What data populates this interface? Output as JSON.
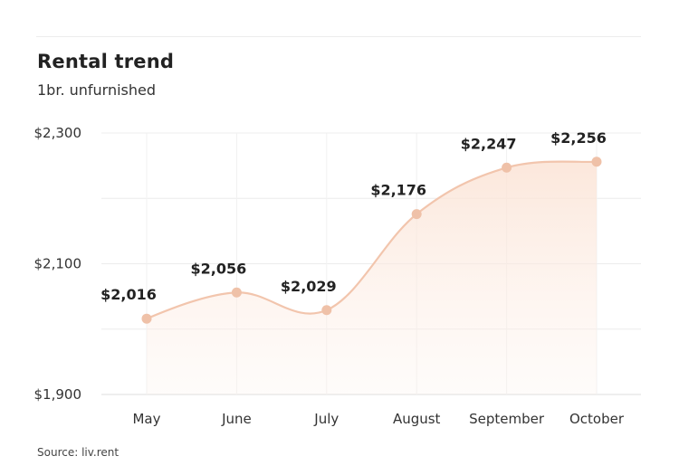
{
  "header": {
    "title": "Rental trend",
    "subtitle": "1br. unfurnished"
  },
  "footer": {
    "source": "Source: liv.rent"
  },
  "colors": {
    "line": "#f2c5ad",
    "marker": "#efc1a8",
    "fill_top": "#fbe3d5",
    "grid": "#ececec"
  },
  "chart_data": {
    "type": "area",
    "categories": [
      "May",
      "June",
      "July",
      "August",
      "September",
      "October"
    ],
    "values": [
      2016,
      2056,
      2029,
      2176,
      2247,
      2256
    ],
    "data_labels": [
      "$2,016",
      "$2,056",
      "$2,029",
      "$2,176",
      "$2,247",
      "$2,256"
    ],
    "ylim": [
      1900,
      2300
    ],
    "yticks": [
      {
        "value": 1900,
        "label": "$1,900"
      },
      {
        "value": 2100,
        "label": "$2,100"
      },
      {
        "value": 2300,
        "label": "$2,300"
      }
    ],
    "grid": true,
    "smooth": true,
    "legend": "none"
  }
}
